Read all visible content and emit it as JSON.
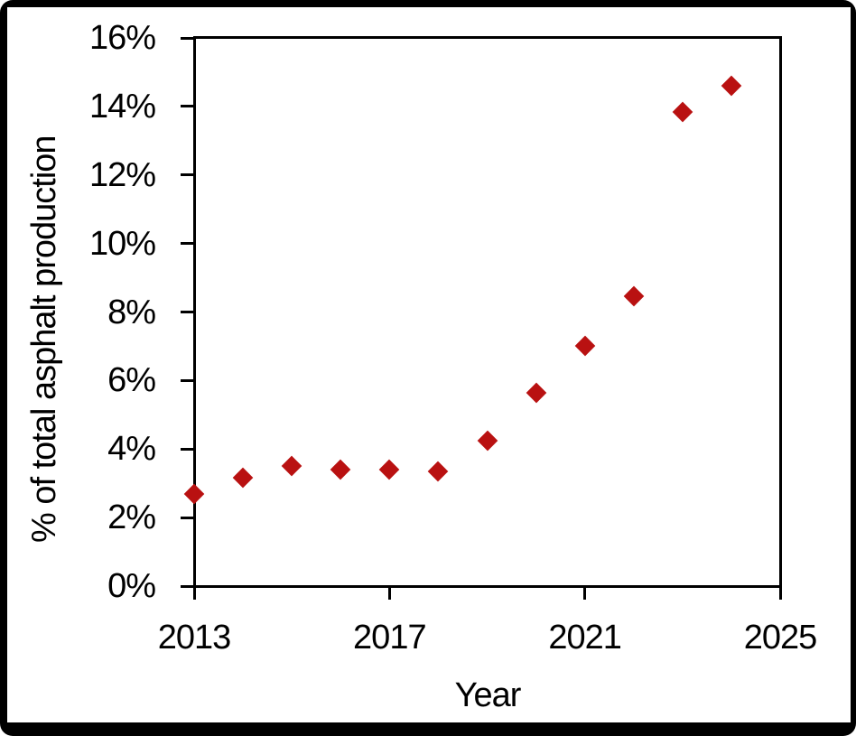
{
  "figure": {
    "border_color": "#000000",
    "panel_background": "#ffffff",
    "axis_color": "#000000",
    "text_color": "#000000"
  },
  "chart_data": {
    "type": "scatter",
    "title": "",
    "xlabel": "Year",
    "ylabel": "% of total asphalt production",
    "xlim": [
      2013,
      2025
    ],
    "ylim": [
      0,
      16
    ],
    "grid": false,
    "legend": null,
    "marker": {
      "shape": "diamond",
      "color": "#B91111"
    },
    "x_ticks": [
      {
        "value": 2013,
        "label": "2013"
      },
      {
        "value": 2017,
        "label": "2017"
      },
      {
        "value": 2021,
        "label": "2021"
      },
      {
        "value": 2025,
        "label": "2025"
      }
    ],
    "y_ticks": [
      {
        "value": 0,
        "label": "0%"
      },
      {
        "value": 2,
        "label": "2%"
      },
      {
        "value": 4,
        "label": "4%"
      },
      {
        "value": 6,
        "label": "6%"
      },
      {
        "value": 8,
        "label": "8%"
      },
      {
        "value": 10,
        "label": "10%"
      },
      {
        "value": 12,
        "label": "12%"
      },
      {
        "value": 14,
        "label": "14%"
      },
      {
        "value": 16,
        "label": "16%"
      }
    ],
    "points": [
      {
        "x": 2013,
        "y": 2.7
      },
      {
        "x": 2014,
        "y": 3.15
      },
      {
        "x": 2015,
        "y": 3.5
      },
      {
        "x": 2016,
        "y": 3.4
      },
      {
        "x": 2017,
        "y": 3.4
      },
      {
        "x": 2018,
        "y": 3.35
      },
      {
        "x": 2019,
        "y": 4.25
      },
      {
        "x": 2020,
        "y": 5.65
      },
      {
        "x": 2021,
        "y": 7.0
      },
      {
        "x": 2022,
        "y": 8.45
      },
      {
        "x": 2023,
        "y": 13.85
      },
      {
        "x": 2024,
        "y": 14.6
      }
    ]
  }
}
